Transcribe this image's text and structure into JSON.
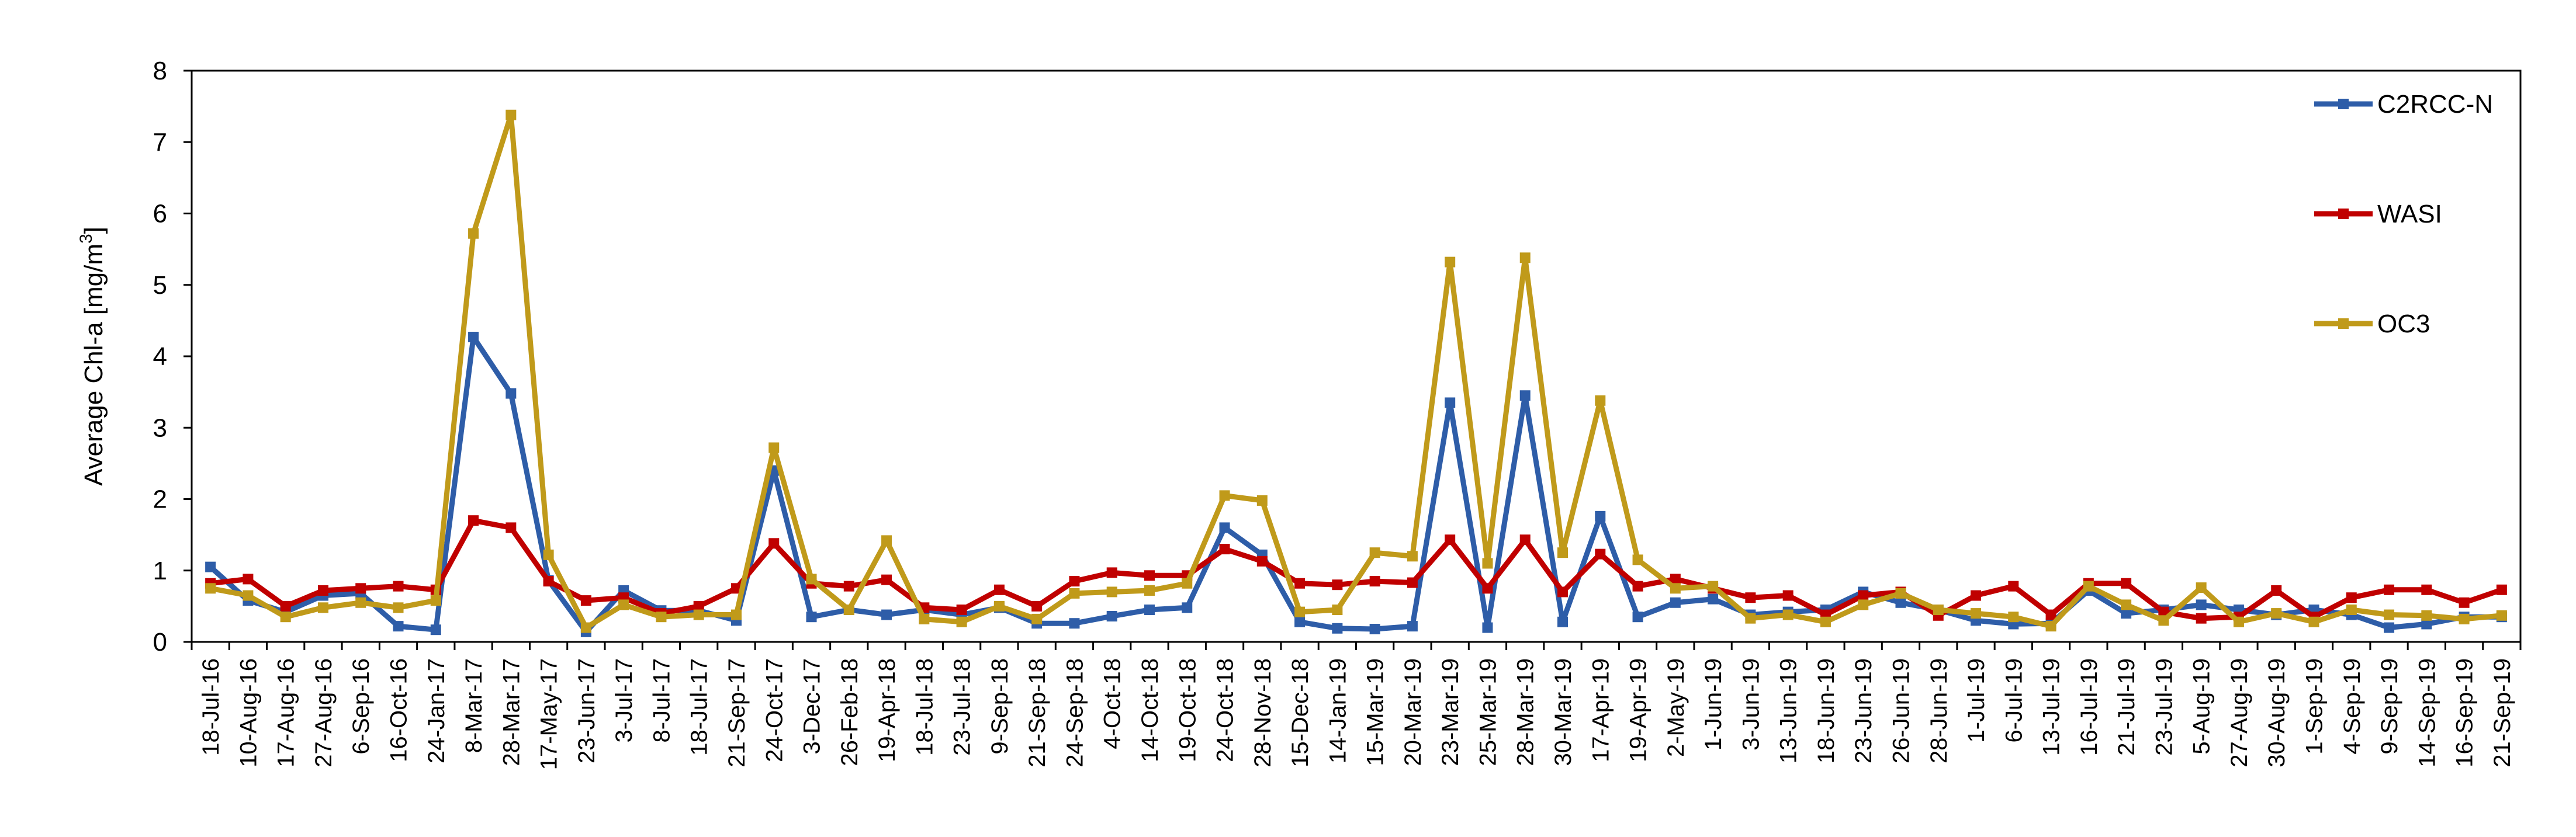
{
  "chart_data": {
    "type": "line",
    "title": "",
    "xlabel": "",
    "ylabel_main": "Average Chl-a [mg/m",
    "ylabel_sup": "3",
    "ylabel_end": "]",
    "ylim": [
      0,
      8
    ],
    "yticks": [
      0,
      1,
      2,
      3,
      4,
      5,
      6,
      7,
      8
    ],
    "grid": false,
    "legend_position": "top-right",
    "categories": [
      "18-Jul-16",
      "10-Aug-16",
      "17-Aug-16",
      "27-Aug-16",
      "6-Sep-16",
      "16-Oct-16",
      "24-Jan-17",
      "8-Mar-17",
      "28-Mar-17",
      "17-May-17",
      "23-Jun-17",
      "3-Jul-17",
      "8-Jul-17",
      "18-Jul-17",
      "21-Sep-17",
      "24-Oct-17",
      "3-Dec-17",
      "26-Feb-18",
      "19-Apr-18",
      "18-Jul-18",
      "23-Jul-18",
      "9-Sep-18",
      "21-Sep-18",
      "24-Sep-18",
      "4-Oct-18",
      "14-Oct-18",
      "19-Oct-18",
      "24-Oct-18",
      "28-Nov-18",
      "15-Dec-18",
      "14-Jan-19",
      "15-Mar-19",
      "20-Mar-19",
      "23-Mar-19",
      "25-Mar-19",
      "28-Mar-19",
      "30-Mar-19",
      "17-Apr-19",
      "19-Apr-19",
      "2-May-19",
      "1-Jun-19",
      "3-Jun-19",
      "13-Jun-19",
      "18-Jun-19",
      "23-Jun-19",
      "26-Jun-19",
      "28-Jun-19",
      "1-Jul-19",
      "6-Jul-19",
      "13-Jul-19",
      "16-Jul-19",
      "21-Jul-19",
      "23-Jul-19",
      "5-Aug-19",
      "27-Aug-19",
      "30-Aug-19",
      "1-Sep-19",
      "4-Sep-19",
      "9-Sep-19",
      "14-Sep-19",
      "16-Sep-19",
      "21-Sep-19"
    ],
    "series": [
      {
        "name": "C2RCC-N",
        "color": "#2E5DA8",
        "values": [
          1.05,
          0.58,
          0.42,
          0.65,
          0.68,
          0.22,
          0.17,
          4.27,
          3.48,
          0.86,
          0.14,
          0.72,
          0.44,
          0.44,
          0.3,
          2.4,
          0.35,
          0.45,
          0.38,
          0.45,
          0.38,
          0.48,
          0.26,
          0.26,
          0.36,
          0.45,
          0.48,
          1.6,
          1.22,
          0.28,
          0.19,
          0.18,
          0.22,
          3.35,
          0.2,
          3.45,
          0.28,
          1.76,
          0.35,
          0.55,
          0.6,
          0.38,
          0.42,
          0.45,
          0.7,
          0.55,
          0.45,
          0.3,
          0.25,
          0.26,
          0.72,
          0.4,
          0.45,
          0.52,
          0.45,
          0.38,
          0.45,
          0.38,
          0.2,
          0.25,
          0.35,
          0.35
        ]
      },
      {
        "name": "WASI",
        "color": "#C00000",
        "values": [
          0.82,
          0.88,
          0.5,
          0.72,
          0.75,
          0.78,
          0.73,
          1.7,
          1.6,
          0.85,
          0.58,
          0.62,
          0.4,
          0.5,
          0.75,
          1.38,
          0.82,
          0.78,
          0.87,
          0.48,
          0.45,
          0.73,
          0.5,
          0.85,
          0.97,
          0.93,
          0.93,
          1.3,
          1.13,
          0.82,
          0.8,
          0.85,
          0.83,
          1.43,
          0.75,
          1.43,
          0.7,
          1.23,
          0.78,
          0.88,
          0.75,
          0.62,
          0.65,
          0.38,
          0.65,
          0.7,
          0.37,
          0.65,
          0.78,
          0.38,
          0.82,
          0.82,
          0.42,
          0.33,
          0.35,
          0.72,
          0.35,
          0.62,
          0.73,
          0.73,
          0.55,
          0.73
        ]
      },
      {
        "name": "OC3",
        "color": "#C09A1A",
        "values": [
          0.75,
          0.65,
          0.35,
          0.48,
          0.55,
          0.48,
          0.58,
          5.72,
          7.38,
          1.22,
          0.2,
          0.52,
          0.35,
          0.38,
          0.38,
          2.72,
          0.88,
          0.45,
          1.42,
          0.32,
          0.28,
          0.5,
          0.32,
          0.68,
          0.7,
          0.72,
          0.82,
          2.05,
          1.98,
          0.42,
          0.45,
          1.25,
          1.2,
          5.32,
          1.1,
          5.38,
          1.25,
          3.38,
          1.15,
          0.75,
          0.78,
          0.33,
          0.38,
          0.28,
          0.52,
          0.68,
          0.45,
          0.4,
          0.35,
          0.22,
          0.78,
          0.52,
          0.3,
          0.76,
          0.28,
          0.4,
          0.28,
          0.45,
          0.38,
          0.37,
          0.32,
          0.37
        ]
      }
    ]
  }
}
